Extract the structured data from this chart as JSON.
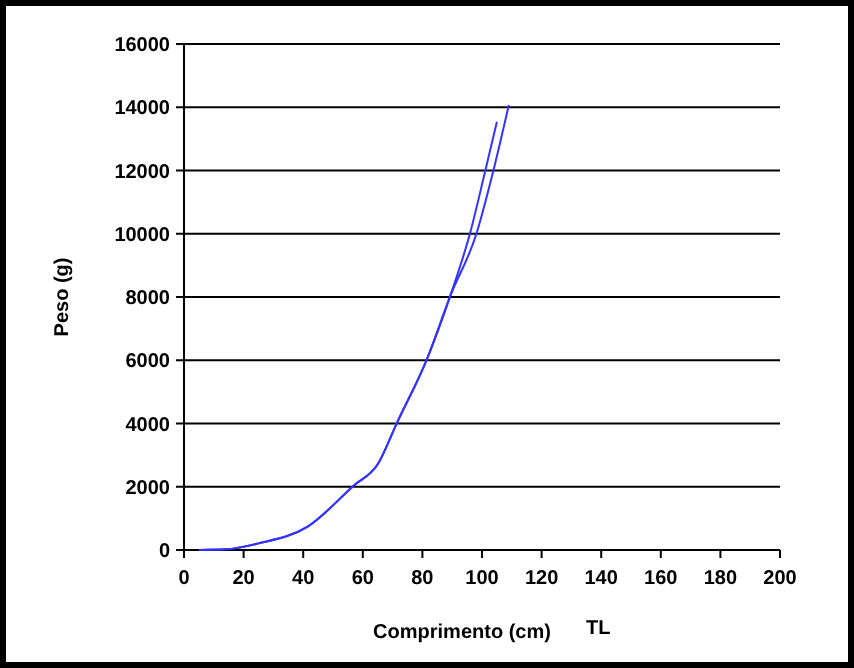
{
  "chart_data": {
    "type": "line",
    "xlabel": "Comprimento (cm)",
    "ylabel": "Peso (g)",
    "annotations": [
      "TL"
    ],
    "series": [
      {
        "color": "#3333ff",
        "x": [
          5,
          14,
          25,
          41.5,
          57,
          65,
          71.5,
          81.5,
          89.3,
          96,
          101,
          105
        ],
        "values": [
          0,
          20,
          210,
          740,
          2040,
          2710,
          4030,
          6030,
          8020,
          10020,
          11950,
          13540
        ]
      },
      {
        "color": "#3333ff",
        "x": [
          5,
          14,
          25,
          41.5,
          57,
          65,
          71.5,
          81.5,
          89.3,
          98.2,
          103.7,
          109
        ],
        "values": [
          0,
          20,
          210,
          740,
          2040,
          2710,
          4030,
          6030,
          8020,
          10020,
          11950,
          14070
        ]
      }
    ],
    "xlim": [
      0,
      200
    ],
    "xticks": [
      0,
      20,
      40,
      60,
      80,
      100,
      120,
      140,
      160,
      180,
      200
    ],
    "ylim": [
      0,
      16000
    ],
    "yticks": [
      0,
      2000,
      4000,
      6000,
      8000,
      10000,
      12000,
      14000,
      16000
    ],
    "grid": "y",
    "marker": "none",
    "line_style": "solid"
  }
}
